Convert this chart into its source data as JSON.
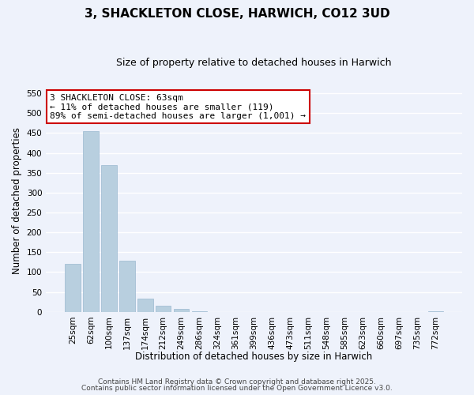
{
  "title": "3, SHACKLETON CLOSE, HARWICH, CO12 3UD",
  "subtitle": "Size of property relative to detached houses in Harwich",
  "xlabel": "Distribution of detached houses by size in Harwich",
  "ylabel": "Number of detached properties",
  "bar_labels": [
    "25sqm",
    "62sqm",
    "100sqm",
    "137sqm",
    "174sqm",
    "212sqm",
    "249sqm",
    "286sqm",
    "324sqm",
    "361sqm",
    "399sqm",
    "436sqm",
    "473sqm",
    "511sqm",
    "548sqm",
    "585sqm",
    "623sqm",
    "660sqm",
    "697sqm",
    "735sqm",
    "772sqm"
  ],
  "bar_values": [
    120,
    455,
    370,
    128,
    33,
    15,
    8,
    2,
    0,
    0,
    0,
    0,
    0,
    0,
    0,
    0,
    0,
    0,
    0,
    0,
    2
  ],
  "bar_color": "#b8cfdf",
  "bar_edge_color": "#9ab8d0",
  "ylim": [
    0,
    560
  ],
  "yticks": [
    0,
    50,
    100,
    150,
    200,
    250,
    300,
    350,
    400,
    450,
    500,
    550
  ],
  "annotation_title": "3 SHACKLETON CLOSE: 63sqm",
  "annotation_line1": "← 11% of detached houses are smaller (119)",
  "annotation_line2": "89% of semi-detached houses are larger (1,001) →",
  "annotation_box_color": "#ffffff",
  "annotation_box_edge_color": "#cc0000",
  "footer_line1": "Contains HM Land Registry data © Crown copyright and database right 2025.",
  "footer_line2": "Contains public sector information licensed under the Open Government Licence v3.0.",
  "background_color": "#eef2fb",
  "grid_color": "#ffffff",
  "title_fontsize": 11,
  "subtitle_fontsize": 9,
  "axis_label_fontsize": 8.5,
  "tick_fontsize": 7.5,
  "annotation_fontsize": 8,
  "footer_fontsize": 6.5
}
